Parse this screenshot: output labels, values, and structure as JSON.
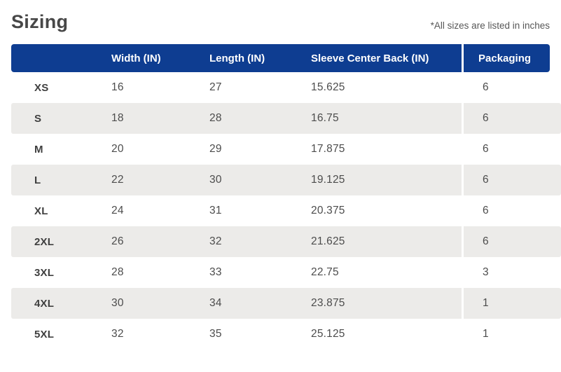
{
  "page": {
    "title": "Sizing",
    "note": "*All sizes are listed in inches"
  },
  "colors": {
    "header_bg": "#0e3d91",
    "header_text": "#ffffff",
    "stripe_bg": "#ecebe9",
    "title_text": "#474747",
    "body_text": "#4c4c4c"
  },
  "table": {
    "headers": {
      "size": "",
      "width": "Width (IN)",
      "length": "Length (IN)",
      "sleeve": "Sleeve Center Back (IN)",
      "packaging": "Packaging"
    },
    "rows": [
      {
        "size": "XS",
        "width": "16",
        "length": "27",
        "sleeve": "15.625",
        "packaging": "6"
      },
      {
        "size": "S",
        "width": "18",
        "length": "28",
        "sleeve": "16.75",
        "packaging": "6"
      },
      {
        "size": "M",
        "width": "20",
        "length": "29",
        "sleeve": "17.875",
        "packaging": "6"
      },
      {
        "size": "L",
        "width": "22",
        "length": "30",
        "sleeve": "19.125",
        "packaging": "6"
      },
      {
        "size": "XL",
        "width": "24",
        "length": "31",
        "sleeve": "20.375",
        "packaging": "6"
      },
      {
        "size": "2XL",
        "width": "26",
        "length": "32",
        "sleeve": "21.625",
        "packaging": "6"
      },
      {
        "size": "3XL",
        "width": "28",
        "length": "33",
        "sleeve": "22.75",
        "packaging": "3"
      },
      {
        "size": "4XL",
        "width": "30",
        "length": "34",
        "sleeve": "23.875",
        "packaging": "1"
      },
      {
        "size": "5XL",
        "width": "32",
        "length": "35",
        "sleeve": "25.125",
        "packaging": "1"
      }
    ]
  }
}
